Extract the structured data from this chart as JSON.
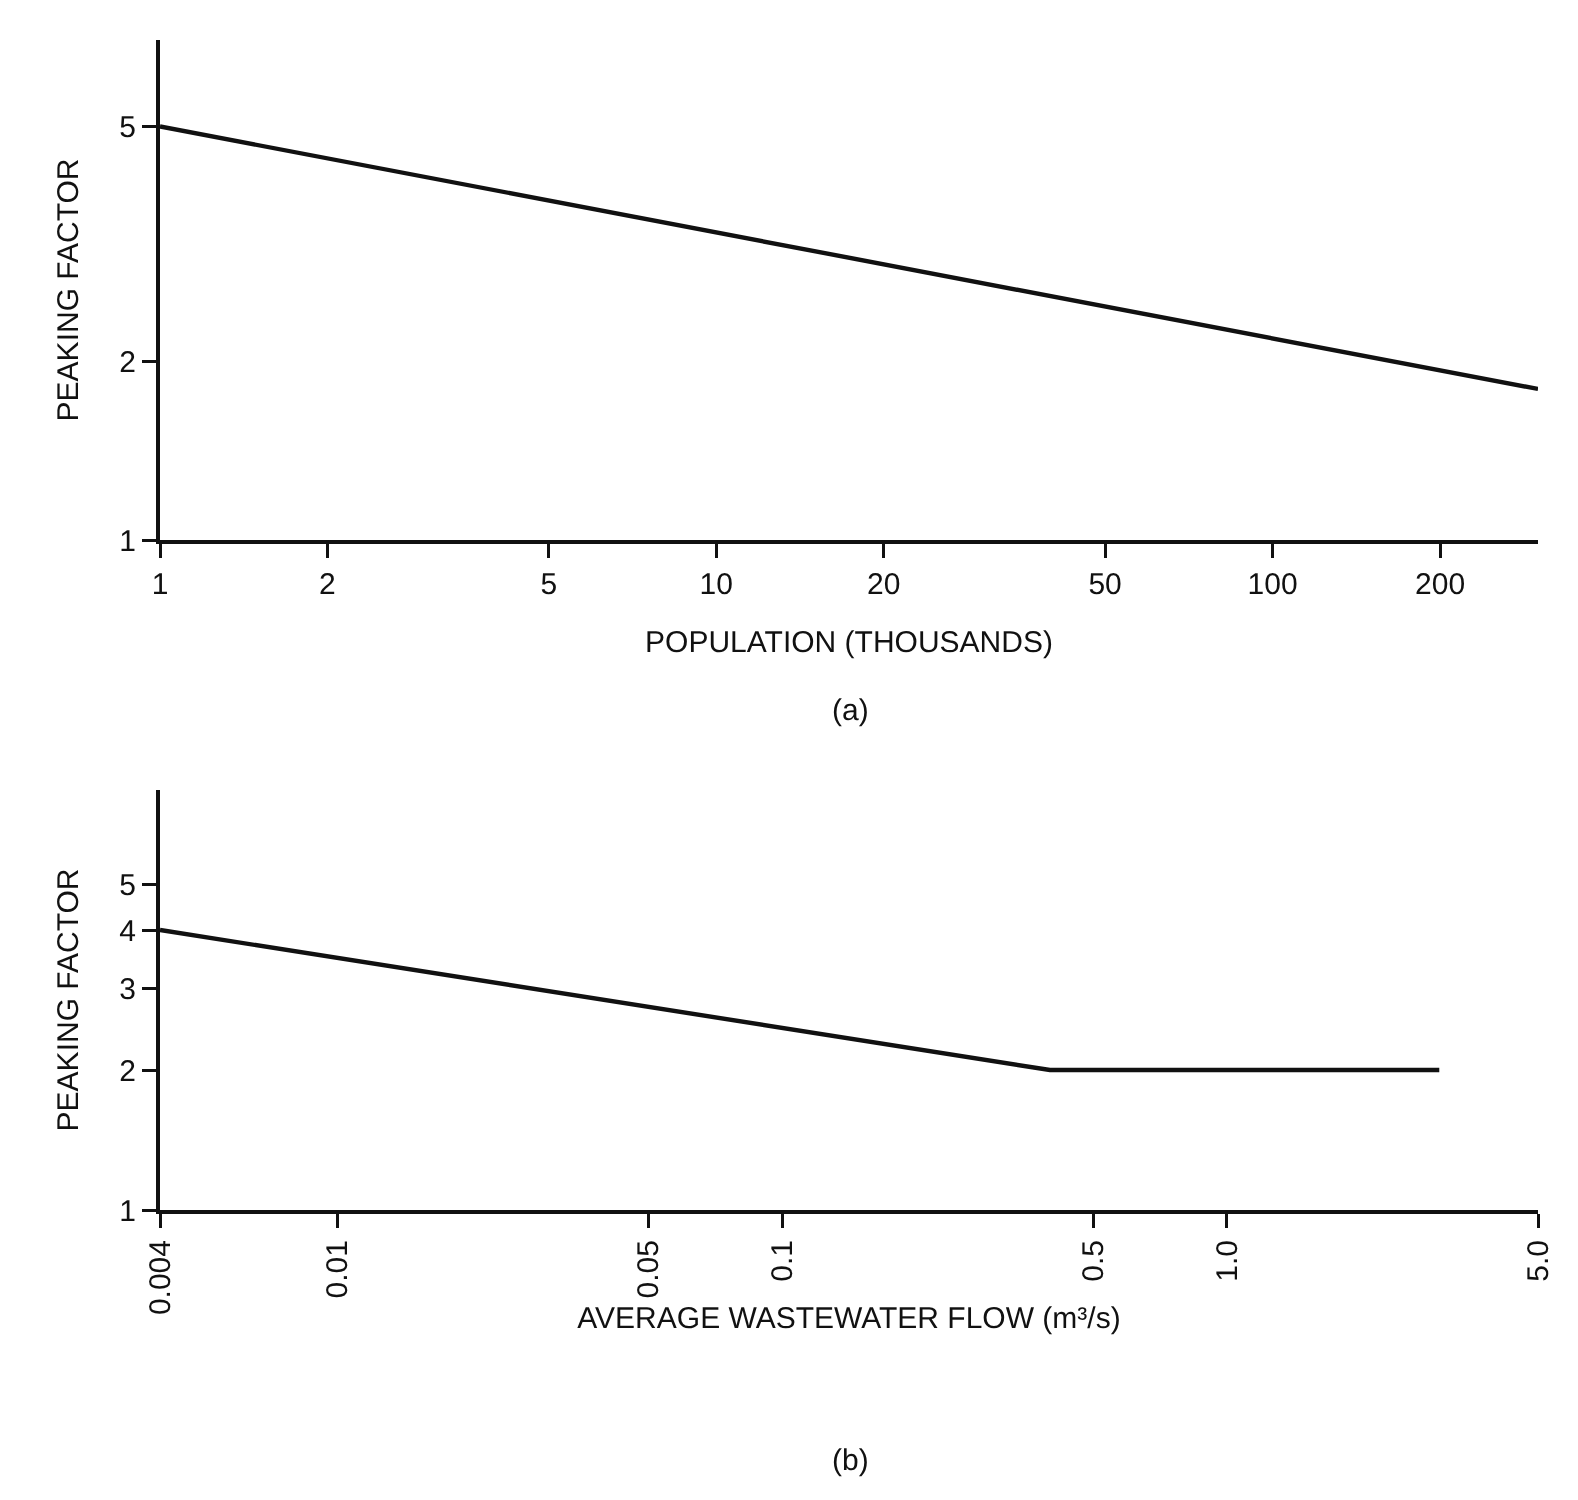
{
  "chart_data": [
    {
      "type": "line",
      "xlabel": "POPULATION (THOUSANDS)",
      "ylabel": "PEAKING FACTOR",
      "log": "xy",
      "x": [
        1,
        300
      ],
      "series": [
        {
          "color": "#111111",
          "values": [
            5,
            1.8
          ]
        }
      ],
      "xlim": [
        1,
        300
      ],
      "ylim": [
        1,
        7
      ],
      "xticks": [
        1,
        2,
        5,
        10,
        20,
        50,
        100,
        200
      ],
      "yticks": [
        1,
        2,
        5
      ],
      "annotations": [
        "(a)"
      ]
    },
    {
      "type": "line",
      "xlabel": "AVERAGE WASTEWATER FLOW (m³/s)",
      "ylabel": "PEAKING FACTOR",
      "log": "xy",
      "x": [
        0.004,
        0.4,
        3
      ],
      "series": [
        {
          "color": "#111111",
          "values": [
            4,
            2,
            2
          ]
        }
      ],
      "xlim": [
        0.004,
        5
      ],
      "ylim": [
        1,
        8
      ],
      "xticks": [
        0.004,
        0.01,
        0.05,
        0.1,
        0.5,
        {
          "value": 1,
          "label": "1.0"
        },
        {
          "value": 5,
          "label": "5.0"
        }
      ],
      "yticks": [
        1,
        2,
        3,
        4,
        5
      ],
      "annotations": [
        "(b)"
      ]
    }
  ]
}
